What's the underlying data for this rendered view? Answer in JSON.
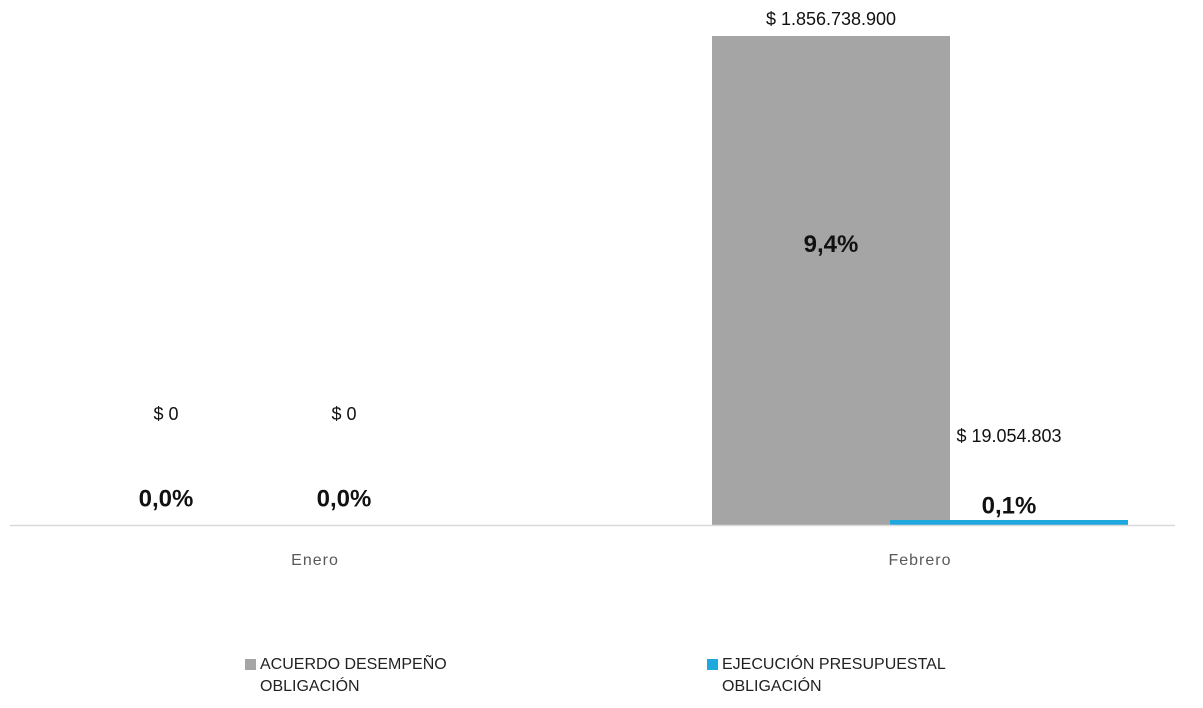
{
  "chart_data": {
    "type": "bar",
    "categories": [
      "Enero",
      "Febrero"
    ],
    "series": [
      {
        "name": "ACUERDO DESEMPEÑO OBLIGACIÓN",
        "color": "#a5a5a5",
        "values": [
          0,
          1856738900
        ],
        "value_labels": [
          "$ 0",
          "$ 1.856.738.900"
        ],
        "percent_labels": [
          "0,0%",
          "9,4%"
        ]
      },
      {
        "name": "EJECUCIÓN PRESUPUESTAL OBLIGACIÓN",
        "color": "#1fa8de",
        "values": [
          0,
          19054803
        ],
        "value_labels": [
          "$ 0",
          "$ 19.054.803"
        ],
        "percent_labels": [
          "0,0%",
          "0,1%"
        ]
      }
    ],
    "ylim": [
      0,
      1856738900
    ]
  }
}
